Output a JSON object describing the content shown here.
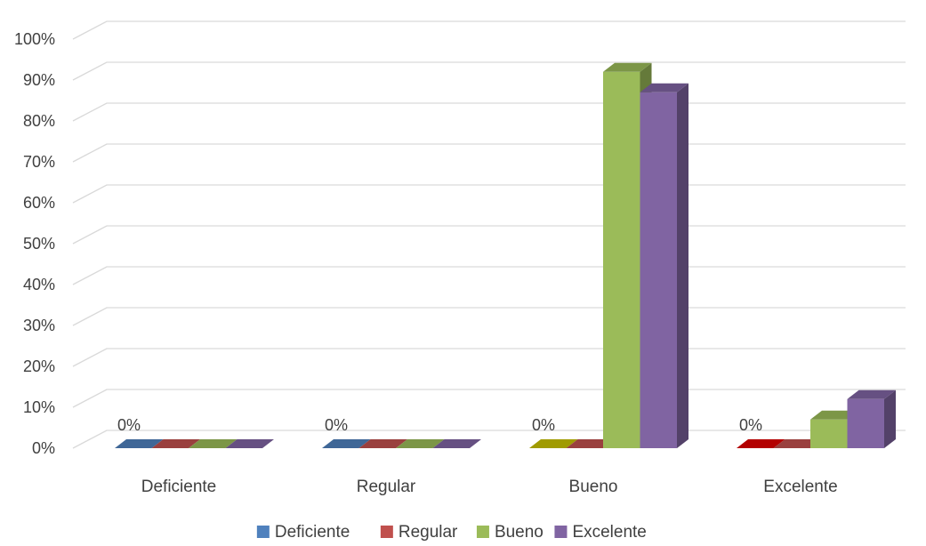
{
  "chart_data": {
    "type": "bar",
    "style": "3d-clustered-column",
    "categories": [
      "Deficiente",
      "Regular",
      "Bueno",
      "Excelente"
    ],
    "series": [
      {
        "name": "Deficiente",
        "color": "#4f81bd",
        "values": [
          0,
          0,
          0,
          0
        ]
      },
      {
        "name": "Regular",
        "color": "#c0504d",
        "values": [
          0,
          0,
          0,
          0
        ]
      },
      {
        "name": "Bueno",
        "color": "#9bbb59",
        "values": [
          0,
          0,
          92,
          7
        ]
      },
      {
        "name": "Excelente",
        "color": "#8064a2",
        "values": [
          0,
          0,
          87,
          12
        ]
      }
    ],
    "bar_color_overrides": [
      {
        "series": 0,
        "category": 2,
        "color": "#c8c200"
      },
      {
        "series": 0,
        "category": 3,
        "color": "#e00000"
      }
    ],
    "data_labels": [
      {
        "category": 0,
        "series": 0,
        "text": "0%"
      },
      {
        "category": 1,
        "series": 0,
        "text": "0%"
      },
      {
        "category": 2,
        "series": 0,
        "text": "0%"
      },
      {
        "category": 3,
        "series": 0,
        "text": "0%"
      }
    ],
    "y_ticks": [
      "0%",
      "10%",
      "20%",
      "30%",
      "40%",
      "50%",
      "60%",
      "70%",
      "80%",
      "90%",
      "100%"
    ],
    "ylim": [
      0,
      100
    ],
    "y_unit": "%",
    "grid": true,
    "legend_position": "bottom"
  }
}
